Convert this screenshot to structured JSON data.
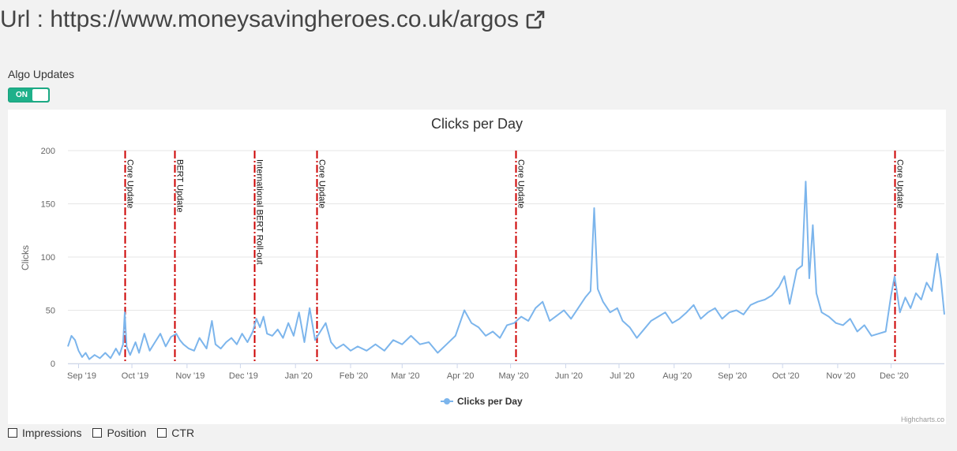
{
  "header": {
    "url_label": "Url : https://www.moneysavingheroes.co.uk/argos",
    "external_icon": "external-link-icon"
  },
  "algo": {
    "label": "Algo Updates",
    "toggle_text": "ON",
    "toggle_on": true,
    "toggle_color": "#1fb08a"
  },
  "chart_data": {
    "type": "line",
    "title": "Clicks per Day",
    "ylabel": "Clicks",
    "xlabel": "",
    "ylim": [
      0,
      200
    ],
    "yticks": [
      0,
      50,
      100,
      150,
      200
    ],
    "x_start": "2019-08-26",
    "x_end": "2020-12-31",
    "x_tick_labels": [
      {
        "date": "2019-09-01",
        "label": "Sep '19"
      },
      {
        "date": "2019-10-01",
        "label": "Oct '19"
      },
      {
        "date": "2019-11-01",
        "label": "Nov '19"
      },
      {
        "date": "2019-12-01",
        "label": "Dec '19"
      },
      {
        "date": "2020-01-01",
        "label": "Jan '20"
      },
      {
        "date": "2020-02-01",
        "label": "Feb '20"
      },
      {
        "date": "2020-03-01",
        "label": "Mar '20"
      },
      {
        "date": "2020-04-01",
        "label": "Apr '20"
      },
      {
        "date": "2020-05-01",
        "label": "May '20"
      },
      {
        "date": "2020-06-01",
        "label": "Jun '20"
      },
      {
        "date": "2020-07-01",
        "label": "Jul '20"
      },
      {
        "date": "2020-08-01",
        "label": "Aug '20"
      },
      {
        "date": "2020-09-01",
        "label": "Sep '20"
      },
      {
        "date": "2020-10-01",
        "label": "Oct '20"
      },
      {
        "date": "2020-11-01",
        "label": "Nov '20"
      },
      {
        "date": "2020-12-01",
        "label": "Dec '20"
      }
    ],
    "series": [
      {
        "name": "Clicks per Day",
        "color": "#7cb5ec",
        "points": [
          [
            "2019-08-26",
            16
          ],
          [
            "2019-08-28",
            26
          ],
          [
            "2019-08-30",
            22
          ],
          [
            "2019-09-01",
            12
          ],
          [
            "2019-09-03",
            6
          ],
          [
            "2019-09-05",
            10
          ],
          [
            "2019-09-07",
            4
          ],
          [
            "2019-09-10",
            8
          ],
          [
            "2019-09-13",
            5
          ],
          [
            "2019-09-16",
            10
          ],
          [
            "2019-09-19",
            5
          ],
          [
            "2019-09-22",
            14
          ],
          [
            "2019-09-24",
            8
          ],
          [
            "2019-09-26",
            18
          ],
          [
            "2019-09-27",
            48
          ],
          [
            "2019-09-28",
            16
          ],
          [
            "2019-09-30",
            8
          ],
          [
            "2019-10-03",
            20
          ],
          [
            "2019-10-05",
            10
          ],
          [
            "2019-10-08",
            28
          ],
          [
            "2019-10-11",
            12
          ],
          [
            "2019-10-14",
            20
          ],
          [
            "2019-10-17",
            28
          ],
          [
            "2019-10-20",
            16
          ],
          [
            "2019-10-23",
            25
          ],
          [
            "2019-10-26",
            28
          ],
          [
            "2019-10-28",
            22
          ],
          [
            "2019-10-30",
            18
          ],
          [
            "2019-11-02",
            14
          ],
          [
            "2019-11-05",
            12
          ],
          [
            "2019-11-08",
            24
          ],
          [
            "2019-11-12",
            14
          ],
          [
            "2019-11-15",
            40
          ],
          [
            "2019-11-17",
            18
          ],
          [
            "2019-11-20",
            14
          ],
          [
            "2019-11-23",
            20
          ],
          [
            "2019-11-26",
            24
          ],
          [
            "2019-11-29",
            18
          ],
          [
            "2019-12-02",
            28
          ],
          [
            "2019-12-05",
            20
          ],
          [
            "2019-12-08",
            30
          ],
          [
            "2019-12-10",
            42
          ],
          [
            "2019-12-12",
            34
          ],
          [
            "2019-12-14",
            44
          ],
          [
            "2019-12-16",
            28
          ],
          [
            "2019-12-19",
            26
          ],
          [
            "2019-12-22",
            32
          ],
          [
            "2019-12-25",
            24
          ],
          [
            "2019-12-28",
            38
          ],
          [
            "2019-12-31",
            26
          ],
          [
            "2020-01-03",
            48
          ],
          [
            "2020-01-06",
            20
          ],
          [
            "2020-01-09",
            52
          ],
          [
            "2020-01-12",
            22
          ],
          [
            "2020-01-15",
            30
          ],
          [
            "2020-01-18",
            38
          ],
          [
            "2020-01-21",
            20
          ],
          [
            "2020-01-24",
            14
          ],
          [
            "2020-01-28",
            18
          ],
          [
            "2020-02-01",
            12
          ],
          [
            "2020-02-05",
            16
          ],
          [
            "2020-02-10",
            12
          ],
          [
            "2020-02-15",
            18
          ],
          [
            "2020-02-20",
            12
          ],
          [
            "2020-02-25",
            22
          ],
          [
            "2020-03-01",
            18
          ],
          [
            "2020-03-06",
            26
          ],
          [
            "2020-03-11",
            18
          ],
          [
            "2020-03-16",
            20
          ],
          [
            "2020-03-21",
            10
          ],
          [
            "2020-03-26",
            18
          ],
          [
            "2020-03-31",
            26
          ],
          [
            "2020-04-05",
            50
          ],
          [
            "2020-04-09",
            38
          ],
          [
            "2020-04-13",
            34
          ],
          [
            "2020-04-17",
            26
          ],
          [
            "2020-04-21",
            30
          ],
          [
            "2020-04-25",
            24
          ],
          [
            "2020-04-29",
            36
          ],
          [
            "2020-05-03",
            38
          ],
          [
            "2020-05-07",
            44
          ],
          [
            "2020-05-11",
            40
          ],
          [
            "2020-05-15",
            52
          ],
          [
            "2020-05-19",
            58
          ],
          [
            "2020-05-23",
            40
          ],
          [
            "2020-05-27",
            45
          ],
          [
            "2020-05-31",
            50
          ],
          [
            "2020-06-04",
            42
          ],
          [
            "2020-06-08",
            52
          ],
          [
            "2020-06-12",
            62
          ],
          [
            "2020-06-15",
            68
          ],
          [
            "2020-06-17",
            146
          ],
          [
            "2020-06-19",
            70
          ],
          [
            "2020-06-22",
            58
          ],
          [
            "2020-06-26",
            48
          ],
          [
            "2020-06-30",
            52
          ],
          [
            "2020-07-03",
            40
          ],
          [
            "2020-07-07",
            34
          ],
          [
            "2020-07-11",
            24
          ],
          [
            "2020-07-15",
            32
          ],
          [
            "2020-07-19",
            40
          ],
          [
            "2020-07-23",
            44
          ],
          [
            "2020-07-27",
            48
          ],
          [
            "2020-07-31",
            38
          ],
          [
            "2020-08-04",
            42
          ],
          [
            "2020-08-08",
            48
          ],
          [
            "2020-08-12",
            55
          ],
          [
            "2020-08-16",
            42
          ],
          [
            "2020-08-20",
            48
          ],
          [
            "2020-08-24",
            52
          ],
          [
            "2020-08-28",
            42
          ],
          [
            "2020-09-01",
            48
          ],
          [
            "2020-09-05",
            50
          ],
          [
            "2020-09-09",
            46
          ],
          [
            "2020-09-13",
            55
          ],
          [
            "2020-09-17",
            58
          ],
          [
            "2020-09-21",
            60
          ],
          [
            "2020-09-25",
            64
          ],
          [
            "2020-09-29",
            72
          ],
          [
            "2020-10-02",
            82
          ],
          [
            "2020-10-05",
            56
          ],
          [
            "2020-10-09",
            88
          ],
          [
            "2020-10-12",
            92
          ],
          [
            "2020-10-14",
            171
          ],
          [
            "2020-10-16",
            80
          ],
          [
            "2020-10-18",
            130
          ],
          [
            "2020-10-20",
            66
          ],
          [
            "2020-10-23",
            48
          ],
          [
            "2020-10-27",
            44
          ],
          [
            "2020-10-31",
            38
          ],
          [
            "2020-11-04",
            36
          ],
          [
            "2020-11-08",
            42
          ],
          [
            "2020-11-12",
            30
          ],
          [
            "2020-11-16",
            36
          ],
          [
            "2020-11-20",
            26
          ],
          [
            "2020-11-24",
            28
          ],
          [
            "2020-11-28",
            30
          ],
          [
            "2020-12-01",
            64
          ],
          [
            "2020-12-03",
            82
          ],
          [
            "2020-12-06",
            48
          ],
          [
            "2020-12-09",
            62
          ],
          [
            "2020-12-12",
            52
          ],
          [
            "2020-12-15",
            66
          ],
          [
            "2020-12-18",
            60
          ],
          [
            "2020-12-21",
            76
          ],
          [
            "2020-12-24",
            68
          ],
          [
            "2020-12-27",
            103
          ],
          [
            "2020-12-29",
            80
          ],
          [
            "2020-12-31",
            46
          ]
        ]
      }
    ],
    "annotations": [
      {
        "date": "2019-09-27",
        "label": "Core Update"
      },
      {
        "date": "2019-10-25",
        "label": "BERT Update"
      },
      {
        "date": "2019-12-09",
        "label": "International BERT Roll-out"
      },
      {
        "date": "2020-01-13",
        "label": "Core Update"
      },
      {
        "date": "2020-05-04",
        "label": "Core Update"
      },
      {
        "date": "2020-12-03",
        "label": "Core Update"
      }
    ],
    "annotation_color": "#cc0000",
    "grid": true,
    "legend": {
      "position": "bottom-center",
      "label": "Clicks per Day"
    },
    "credits": "Highcharts.co"
  },
  "bottom_checks": {
    "impressions": "Impressions",
    "position": "Position",
    "ctr": "CTR"
  }
}
